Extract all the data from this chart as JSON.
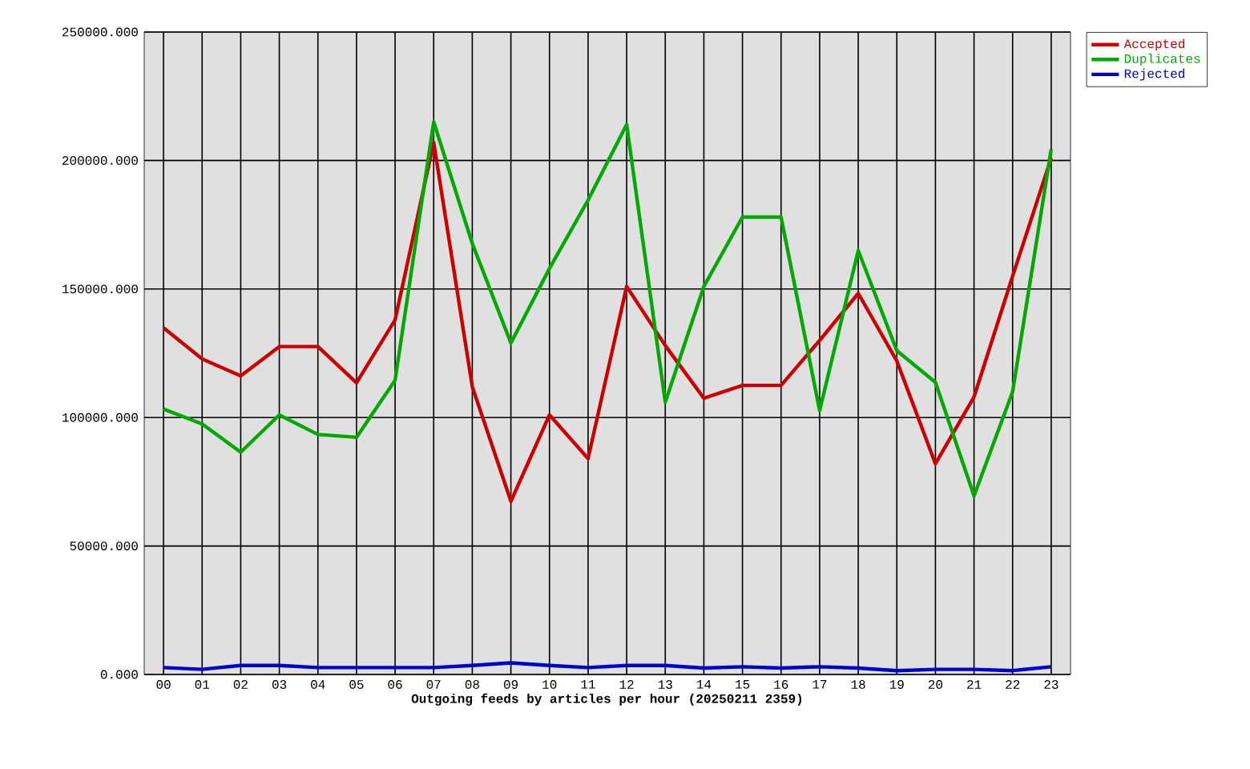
{
  "chart_data": {
    "type": "line",
    "xlabel": "Outgoing feeds by articles per hour (20250211 2359)",
    "categories": [
      "00",
      "01",
      "02",
      "03",
      "04",
      "05",
      "06",
      "07",
      "08",
      "09",
      "10",
      "11",
      "12",
      "13",
      "14",
      "15",
      "16",
      "17",
      "18",
      "19",
      "20",
      "21",
      "22",
      "23"
    ],
    "series": [
      {
        "name": "Accepted",
        "color": "#cc0000",
        "values": [
          134900,
          122800,
          116200,
          127600,
          127600,
          113500,
          138000,
          207000,
          112000,
          67400,
          101000,
          84000,
          151000,
          128000,
          107500,
          112500,
          112500,
          130000,
          148300,
          122000,
          82000,
          108000,
          155000,
          201000
        ]
      },
      {
        "name": "Duplicates",
        "color": "#00aa00",
        "values": [
          103300,
          97500,
          86500,
          101000,
          93400,
          92300,
          114500,
          215000,
          167700,
          129000,
          158000,
          184600,
          214000,
          106000,
          151000,
          178000,
          178000,
          102700,
          165000,
          126000,
          113700,
          69500,
          110000,
          204400
        ]
      },
      {
        "name": "Rejected",
        "color": "#0000cc",
        "values": [
          2700,
          2000,
          3500,
          3500,
          2700,
          2700,
          2700,
          2700,
          3500,
          4500,
          3500,
          2700,
          3500,
          3500,
          2500,
          3000,
          2500,
          3000,
          2500,
          1500,
          2000,
          2000,
          1500,
          3000
        ]
      }
    ],
    "ylim": [
      0,
      250000
    ],
    "yticks": [
      {
        "value": 0,
        "label": "0.000"
      },
      {
        "value": 50000,
        "label": "50000.000"
      },
      {
        "value": 100000,
        "label": "100000.000"
      },
      {
        "value": 150000,
        "label": "150000.000"
      },
      {
        "value": 200000,
        "label": "200000.000"
      },
      {
        "value": 250000,
        "label": "250000.000"
      }
    ],
    "grid": true,
    "legend": "top right",
    "marker": "none",
    "line_style": "solid"
  }
}
